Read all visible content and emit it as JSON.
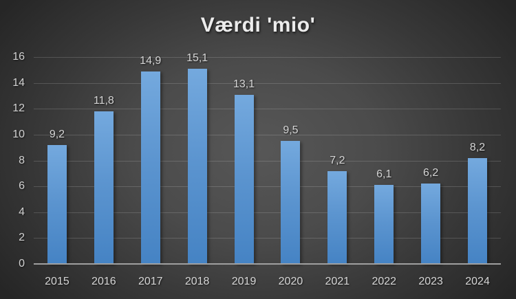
{
  "chart_data": {
    "type": "bar",
    "title": "Værdi 'mio'",
    "categories": [
      "2015",
      "2016",
      "2017",
      "2018",
      "2019",
      "2020",
      "2021",
      "2022",
      "2023",
      "2024"
    ],
    "values": [
      9.2,
      11.8,
      14.9,
      15.1,
      13.1,
      9.5,
      7.2,
      6.1,
      6.2,
      8.2
    ],
    "value_labels": [
      "9,2",
      "11,8",
      "14,9",
      "15,1",
      "13,1",
      "9,5",
      "7,2",
      "6,1",
      "6,2",
      "8,2"
    ],
    "xlabel": "",
    "ylabel": "",
    "ylim": [
      0,
      16
    ],
    "yticks": [
      0,
      2,
      4,
      6,
      8,
      10,
      12,
      14,
      16
    ],
    "grid": true,
    "legend": "none",
    "decimal_separator": ",",
    "colors": {
      "bar_top": "#74a9de",
      "bar_bottom": "#4583c4",
      "background_center": "#575757",
      "background_edge": "#262626",
      "gridline": "rgba(255,255,255,0.16)",
      "axis_line": "#a0a0a0",
      "tick_label": "#d2d2d2",
      "data_label": "#d6d6d6",
      "title": "#ececec"
    }
  }
}
